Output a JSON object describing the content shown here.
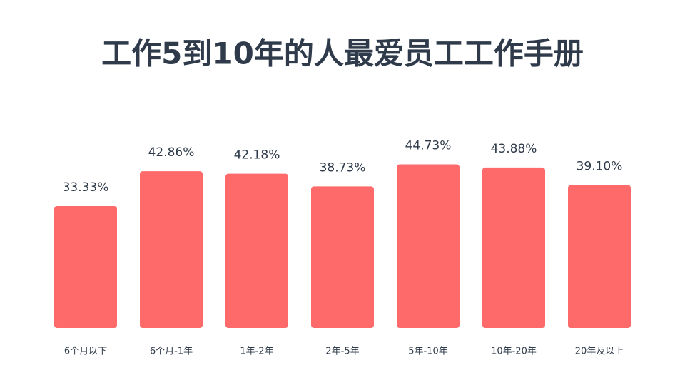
{
  "chart_data": {
    "type": "bar",
    "title": "工作5到10年的人最爱员工工作手册",
    "categories": [
      "6个月以下",
      "6个月-1年",
      "1年-2年",
      "2年-5年",
      "5年-10年",
      "10年-20年",
      "20年及以上"
    ],
    "values": [
      33.33,
      42.86,
      42.18,
      38.73,
      44.73,
      43.88,
      39.1
    ],
    "value_labels": [
      "33.33%",
      "42.86%",
      "42.18%",
      "38.73%",
      "44.73%",
      "43.88%",
      "39.10%"
    ],
    "color": "#fe6a6a"
  }
}
